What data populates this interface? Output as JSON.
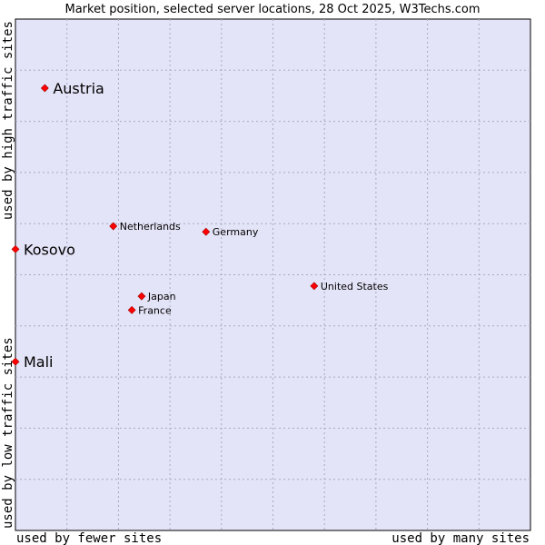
{
  "chart_data": {
    "type": "scatter",
    "title": "Market position, selected server locations, 28 Oct 2025, W3Techs.com",
    "xlabel_left": "used by fewer sites",
    "xlabel_right": "used by many sites",
    "ylabel_bottom": "used by low traffic sites",
    "ylabel_top": "used by high traffic sites",
    "xlim": [
      0,
      100
    ],
    "ylim": [
      0,
      100
    ],
    "grid": true,
    "point_color": "#ff0000",
    "plot_bg": "#e4e4f8",
    "points": [
      {
        "name": "Austria",
        "x": 5.7,
        "y": 86.5,
        "emphasis": true
      },
      {
        "name": "Kosovo",
        "x": 0.0,
        "y": 55.0,
        "emphasis": true
      },
      {
        "name": "Mali",
        "x": 0.0,
        "y": 33.0,
        "emphasis": true
      },
      {
        "name": "Netherlands",
        "x": 19.0,
        "y": 59.5,
        "emphasis": false
      },
      {
        "name": "Germany",
        "x": 37.0,
        "y": 58.4,
        "emphasis": false
      },
      {
        "name": "United States",
        "x": 58.0,
        "y": 47.8,
        "emphasis": false
      },
      {
        "name": "Japan",
        "x": 24.5,
        "y": 45.8,
        "emphasis": false
      },
      {
        "name": "France",
        "x": 22.6,
        "y": 43.1,
        "emphasis": false
      }
    ]
  }
}
